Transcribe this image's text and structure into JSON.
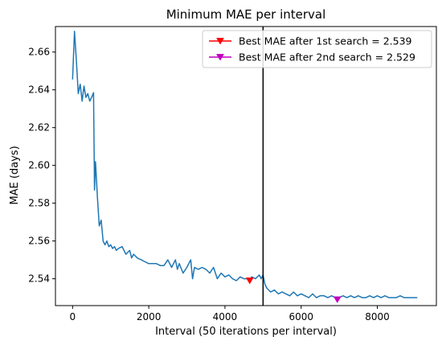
{
  "chart_data": {
    "type": "line",
    "title": "Minimum MAE per interval",
    "xlabel": "Interval (50 iterations per interval)",
    "ylabel": "MAE (days)",
    "xlim": [
      -450,
      9550
    ],
    "ylim": [
      2.5258,
      2.6735
    ],
    "xticks": [
      0,
      2000,
      4000,
      6000,
      8000
    ],
    "xtick_labels": [
      "0",
      "2000",
      "4000",
      "6000",
      "8000"
    ],
    "yticks": [
      2.54,
      2.56,
      2.58,
      2.6,
      2.62,
      2.64,
      2.66
    ],
    "ytick_labels": [
      "2.54",
      "2.56",
      "2.58",
      "2.60",
      "2.62",
      "2.64",
      "2.66"
    ],
    "grid": false,
    "legend_position": "top-right",
    "vline_x": 5000,
    "colors": {
      "series": "#1f77b4",
      "vline": "#000000",
      "best1": "#ff0000",
      "best2": "#bf00bf"
    },
    "series": [
      {
        "x": [
          0,
          50,
          100,
          150,
          200,
          250,
          300,
          350,
          400,
          450,
          500,
          550,
          575,
          600,
          625,
          650,
          700,
          750,
          800,
          850,
          900,
          950,
          1000,
          1050,
          1100,
          1150,
          1200,
          1300,
          1400,
          1500,
          1550,
          1600,
          1700,
          1800,
          1900,
          2000,
          2100,
          2200,
          2300,
          2400,
          2500,
          2600,
          2700,
          2750,
          2800,
          2900,
          3000,
          3100,
          3150,
          3200,
          3300,
          3400,
          3500,
          3600,
          3700,
          3800,
          3900,
          4000,
          4100,
          4200,
          4300,
          4400,
          4500,
          4600,
          4650,
          4700,
          4800,
          4900,
          4950,
          5000,
          5050,
          5100,
          5200,
          5300,
          5400,
          5500,
          5600,
          5700,
          5800,
          5900,
          6000,
          6100,
          6200,
          6300,
          6400,
          6500,
          6600,
          6700,
          6800,
          6900,
          6950,
          7000,
          7100,
          7200,
          7300,
          7400,
          7500,
          7600,
          7700,
          7800,
          7900,
          8000,
          8100,
          8200,
          8300,
          8400,
          8500,
          8600,
          8700,
          8800,
          8900,
          9000,
          9050
        ],
        "values": [
          2.6455,
          2.671,
          2.655,
          2.638,
          2.643,
          2.634,
          2.642,
          2.636,
          2.638,
          2.634,
          2.636,
          2.6385,
          2.587,
          2.602,
          2.593,
          2.584,
          2.568,
          2.571,
          2.56,
          2.558,
          2.56,
          2.557,
          2.558,
          2.556,
          2.557,
          2.555,
          2.556,
          2.557,
          2.553,
          2.555,
          2.551,
          2.553,
          2.551,
          2.55,
          2.549,
          2.548,
          2.548,
          2.548,
          2.547,
          2.547,
          2.55,
          2.546,
          2.55,
          2.545,
          2.548,
          2.543,
          2.546,
          2.55,
          2.54,
          2.546,
          2.545,
          2.546,
          2.545,
          2.543,
          2.546,
          2.54,
          2.543,
          2.541,
          2.542,
          2.54,
          2.539,
          2.541,
          2.54,
          2.54,
          2.539,
          2.541,
          2.54,
          2.542,
          2.54,
          2.542,
          2.537,
          2.535,
          2.533,
          2.534,
          2.532,
          2.533,
          2.532,
          2.531,
          2.533,
          2.531,
          2.532,
          2.531,
          2.53,
          2.532,
          2.53,
          2.531,
          2.531,
          2.53,
          2.531,
          2.53,
          2.529,
          2.53,
          2.531,
          2.53,
          2.531,
          2.53,
          2.531,
          2.53,
          2.53,
          2.531,
          2.53,
          2.531,
          2.53,
          2.531,
          2.53,
          2.53,
          2.53,
          2.531,
          2.53,
          2.53,
          2.53,
          2.53,
          2.53
        ]
      }
    ],
    "markers": [
      {
        "label": "Best MAE after 1st search = 2.539",
        "x": 4650,
        "y": 2.539
      },
      {
        "label": "Best MAE after 2nd search = 2.529",
        "x": 6950,
        "y": 2.529
      }
    ]
  }
}
